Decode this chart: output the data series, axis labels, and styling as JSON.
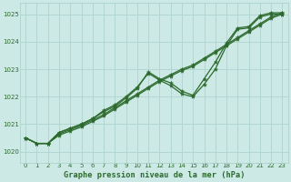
{
  "title": "Graphe pression niveau de la mer (hPa)",
  "bg_color": "#cce9e5",
  "line_color": "#2d6a2d",
  "grid_color": "#aed4cf",
  "ylim": [
    1019.6,
    1025.4
  ],
  "xlim": [
    -0.5,
    23.5
  ],
  "yticks": [
    1020,
    1021,
    1022,
    1023,
    1024,
    1025
  ],
  "xticks": [
    0,
    1,
    2,
    3,
    4,
    5,
    6,
    7,
    8,
    9,
    10,
    11,
    12,
    13,
    14,
    15,
    16,
    17,
    18,
    19,
    20,
    21,
    22,
    23
  ],
  "series_straight1": [
    1020.5,
    1020.3,
    1020.3,
    1020.6,
    1020.75,
    1020.9,
    1021.1,
    1021.3,
    1021.55,
    1021.8,
    1022.05,
    1022.3,
    1022.55,
    1022.75,
    1022.95,
    1023.1,
    1023.35,
    1023.6,
    1023.85,
    1024.1,
    1024.35,
    1024.6,
    1024.85,
    1025.0
  ],
  "series_straight2": [
    1020.5,
    1020.3,
    1020.3,
    1020.65,
    1020.8,
    1020.95,
    1021.15,
    1021.35,
    1021.6,
    1021.85,
    1022.1,
    1022.35,
    1022.6,
    1022.8,
    1023.0,
    1023.15,
    1023.4,
    1023.65,
    1023.9,
    1024.15,
    1024.4,
    1024.65,
    1024.9,
    1025.05
  ],
  "series_wavy1": [
    1020.5,
    1020.3,
    1020.3,
    1020.7,
    1020.85,
    1021.0,
    1021.2,
    1021.5,
    1021.7,
    1022.0,
    1022.35,
    1022.85,
    1022.6,
    1022.4,
    1022.1,
    1022.0,
    1022.45,
    1023.0,
    1023.85,
    1024.45,
    1024.5,
    1024.9,
    1025.0,
    1025.0
  ],
  "series_wavy2": [
    1020.5,
    1020.3,
    1020.3,
    1020.7,
    1020.85,
    1021.0,
    1021.2,
    1021.45,
    1021.65,
    1021.95,
    1022.3,
    1022.9,
    1022.65,
    1022.5,
    1022.2,
    1022.05,
    1022.65,
    1023.25,
    1023.95,
    1024.5,
    1024.55,
    1024.95,
    1025.05,
    1025.05
  ]
}
